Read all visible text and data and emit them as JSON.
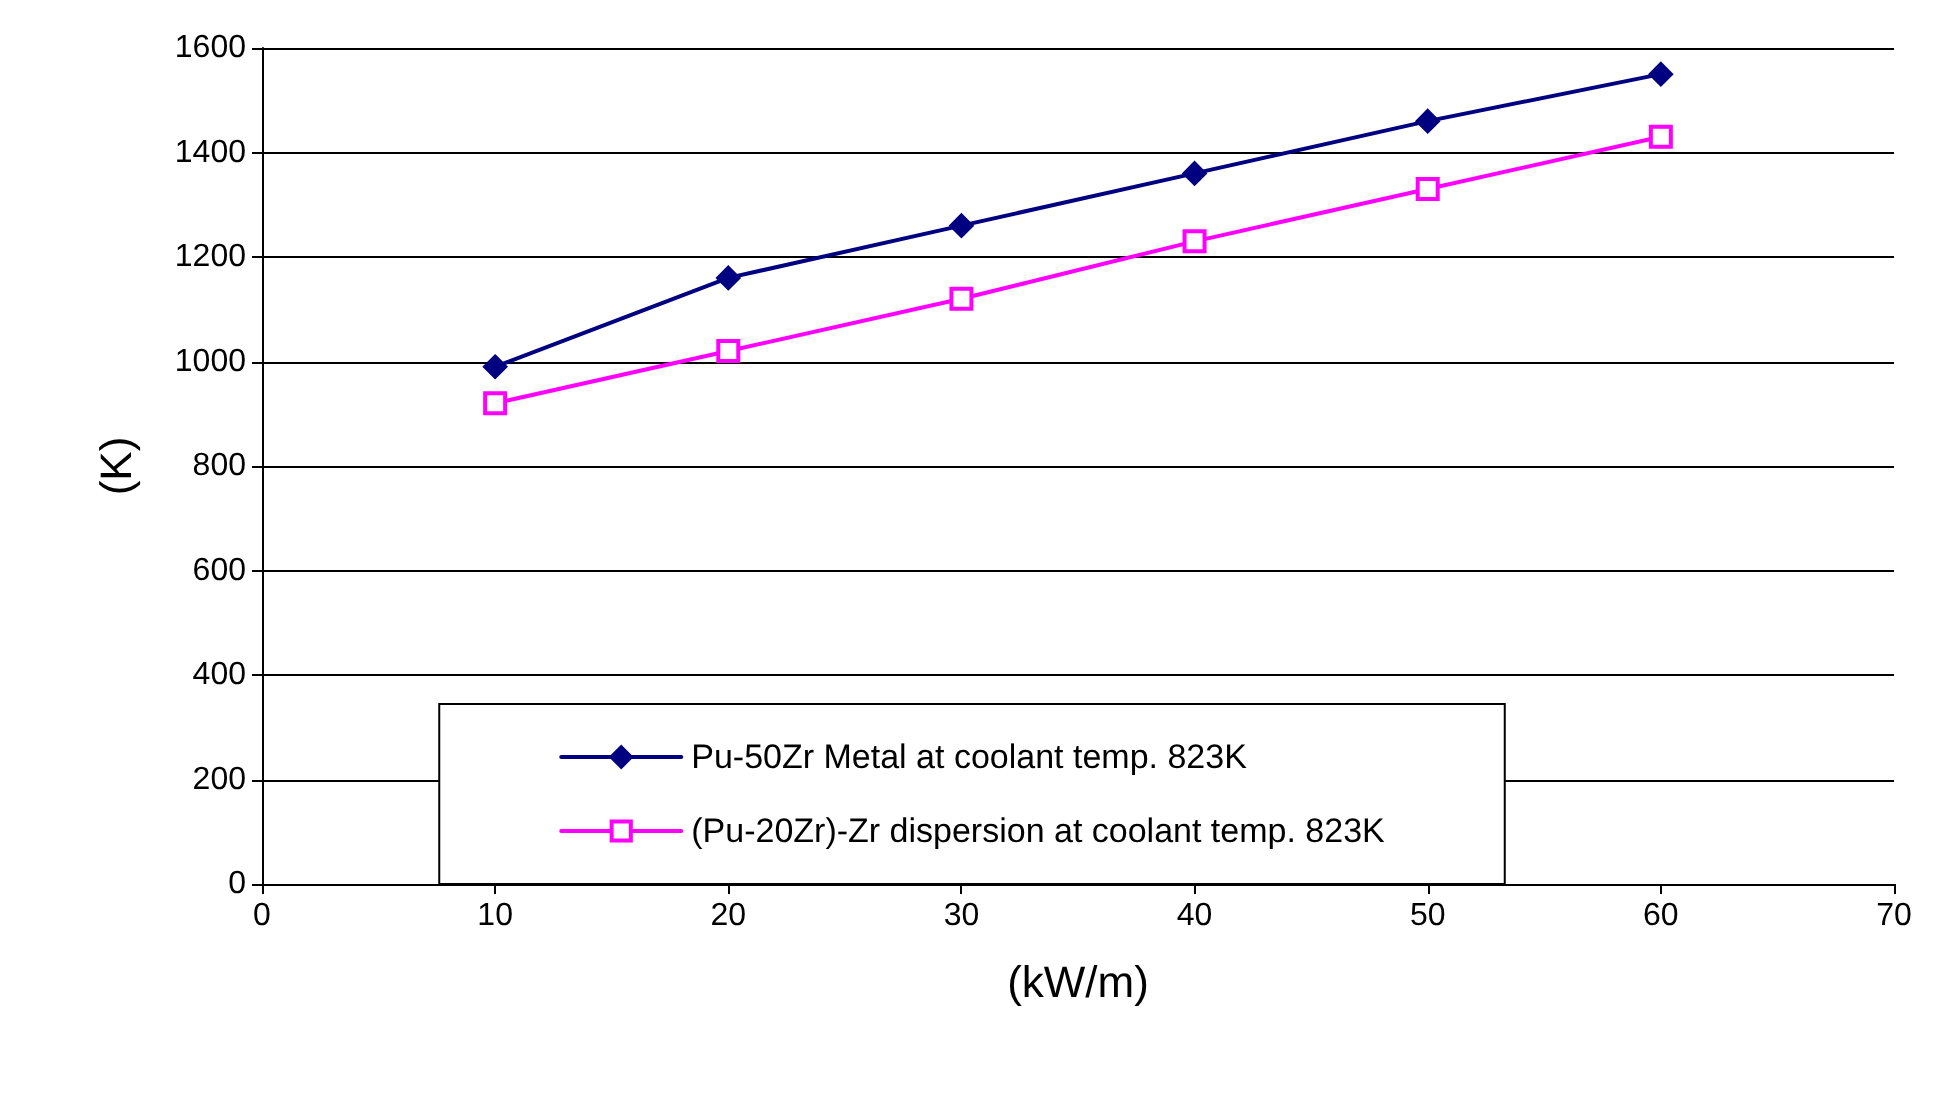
{
  "chart_data": {
    "type": "line",
    "xlabel": "(kW/m)",
    "ylabel": "(K)",
    "series": [
      {
        "name": "Pu-50Zr Metal at coolant temp. 823K",
        "color": "#000080",
        "marker": "diamond",
        "x": [
          10,
          20,
          30,
          40,
          50,
          60
        ],
        "values": [
          990,
          1160,
          1260,
          1360,
          1460,
          1550
        ]
      },
      {
        "name": "(Pu-20Zr)-Zr dispersion at coolant temp. 823K",
        "color": "#ff00ff",
        "marker": "square",
        "x": [
          10,
          20,
          30,
          40,
          50,
          60
        ],
        "values": [
          920,
          1020,
          1120,
          1230,
          1330,
          1430
        ]
      }
    ],
    "xlim": [
      0,
      70
    ],
    "xticks": [
      0,
      10,
      20,
      30,
      40,
      50,
      60,
      70
    ],
    "ylim": [
      0,
      1600
    ],
    "yticks": [
      0,
      200,
      400,
      600,
      800,
      1000,
      1200,
      1400,
      1600
    ],
    "grid": "y",
    "legend": "bottom",
    "line_style": "solid"
  }
}
